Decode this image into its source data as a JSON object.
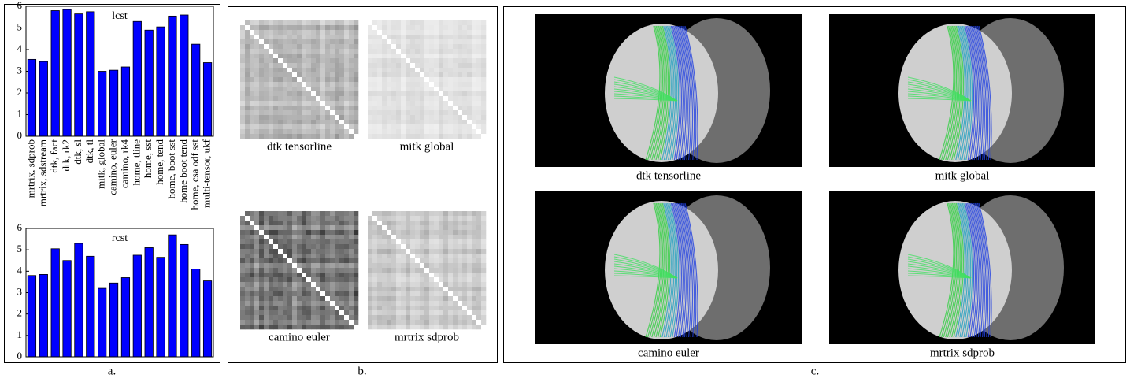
{
  "chart_data": [
    {
      "type": "bar",
      "title": "lcst",
      "color": "#0000ff",
      "categories": [
        "mrtrix, sdprob",
        "mrtrix, sdstream",
        "dtk, fact",
        "dtk, rk2",
        "dtk, sl",
        "dtk, tl",
        "mitk, global",
        "camino, euler",
        "camino, rk4",
        "home, tline",
        "home, sst",
        "home, tend",
        "home, boot sst",
        "home boot tend",
        "home, csa odf sst",
        "multi-tensor, ukf"
      ],
      "values": [
        3.55,
        3.45,
        5.8,
        5.85,
        5.65,
        5.75,
        3.0,
        3.05,
        3.2,
        5.3,
        4.9,
        5.05,
        5.55,
        5.6,
        4.25,
        3.4
      ],
      "ylim": [
        0,
        6
      ],
      "yticks": [
        0,
        1,
        2,
        3,
        4,
        5,
        6
      ]
    },
    {
      "type": "bar",
      "title": "rcst",
      "color": "#0000ff",
      "categories": [
        null,
        null,
        null,
        null,
        null,
        null,
        null,
        null,
        null,
        null,
        null,
        null,
        null,
        null,
        null,
        null
      ],
      "values": [
        3.8,
        3.85,
        5.05,
        4.5,
        5.3,
        4.7,
        3.2,
        3.45,
        3.7,
        4.75,
        5.1,
        4.65,
        5.7,
        5.25,
        4.1,
        3.55
      ],
      "ylim": [
        0,
        6
      ],
      "yticks": [
        0,
        1,
        2,
        3,
        4,
        5,
        6
      ]
    }
  ],
  "panel_labels": [
    "a.",
    "b.",
    "c."
  ],
  "matrices": [
    "dtk tensorline",
    "mitk global",
    "camino euler",
    "mrtrix sdprob"
  ],
  "renderings": [
    "dtk tensorline",
    "mitk global",
    "camino euler",
    "mrtrix sdprob"
  ]
}
